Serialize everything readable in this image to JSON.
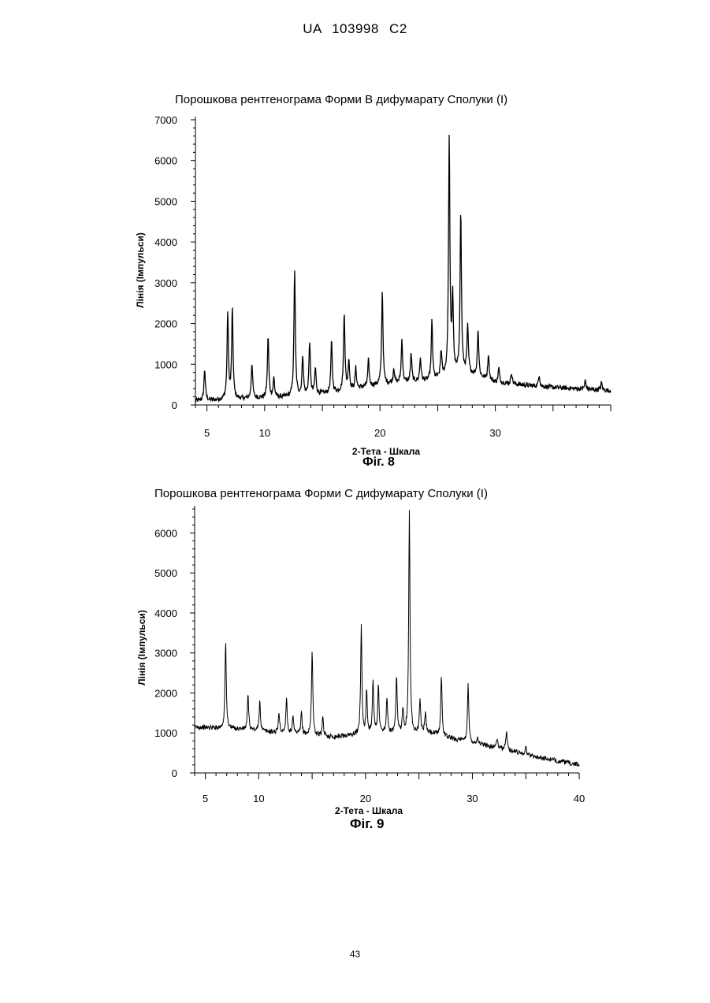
{
  "header": "UA 103998 C2",
  "page_number": "43",
  "chart_data": [
    {
      "type": "line",
      "title": "Порошкова рентгенограма Форми В дифумарату Сполуки (I)",
      "xlabel": "2-Тета - Шкала",
      "ylabel": "Лінія (Імпульси)",
      "caption": "Фіг. 8",
      "xlim": [
        4,
        40
      ],
      "ylim": [
        0,
        7000
      ],
      "xticks": [
        5,
        10,
        20,
        30
      ],
      "yticks": [
        0,
        1000,
        2000,
        3000,
        4000,
        5000,
        6000,
        7000
      ],
      "baseline": [
        [
          4.0,
          100
        ],
        [
          8.0,
          150
        ],
        [
          12.0,
          200
        ],
        [
          16.0,
          300
        ],
        [
          20.0,
          500
        ],
        [
          24.5,
          600
        ],
        [
          27.5,
          800
        ],
        [
          30.0,
          550
        ],
        [
          34.0,
          450
        ],
        [
          40.0,
          350
        ]
      ],
      "peaks": [
        {
          "x": 4.8,
          "y": 880
        },
        {
          "x": 6.8,
          "y": 2260
        },
        {
          "x": 7.2,
          "y": 2320
        },
        {
          "x": 8.9,
          "y": 1030
        },
        {
          "x": 10.3,
          "y": 1700
        },
        {
          "x": 10.8,
          "y": 650
        },
        {
          "x": 12.6,
          "y": 3330
        },
        {
          "x": 13.3,
          "y": 1200
        },
        {
          "x": 13.9,
          "y": 1550
        },
        {
          "x": 14.4,
          "y": 900
        },
        {
          "x": 15.8,
          "y": 1560
        },
        {
          "x": 16.9,
          "y": 2280
        },
        {
          "x": 17.3,
          "y": 1100
        },
        {
          "x": 17.9,
          "y": 900
        },
        {
          "x": 19.0,
          "y": 1100
        },
        {
          "x": 20.2,
          "y": 2800
        },
        {
          "x": 21.2,
          "y": 900
        },
        {
          "x": 21.9,
          "y": 1600
        },
        {
          "x": 22.7,
          "y": 1250
        },
        {
          "x": 23.5,
          "y": 1150
        },
        {
          "x": 24.5,
          "y": 2050
        },
        {
          "x": 25.3,
          "y": 1300
        },
        {
          "x": 26.0,
          "y": 6500
        },
        {
          "x": 26.3,
          "y": 2600
        },
        {
          "x": 27.0,
          "y": 4750
        },
        {
          "x": 27.6,
          "y": 1900
        },
        {
          "x": 28.5,
          "y": 1850
        },
        {
          "x": 29.4,
          "y": 1250
        },
        {
          "x": 30.3,
          "y": 900
        },
        {
          "x": 31.4,
          "y": 800
        },
        {
          "x": 33.8,
          "y": 750
        },
        {
          "x": 37.8,
          "y": 600
        },
        {
          "x": 39.2,
          "y": 550
        }
      ]
    },
    {
      "type": "line",
      "title": "Порошкова рентгенограма Форми С дифумарату Сполуки (I)",
      "xlabel": "2-Тета - Шкала",
      "ylabel": "Лінія (Імпульси)",
      "caption": "Фіг. 9",
      "xlim": [
        4,
        40
      ],
      "ylim": [
        0,
        6600
      ],
      "xticks": [
        5,
        10,
        20,
        30,
        40
      ],
      "yticks": [
        0,
        1000,
        2000,
        3000,
        4000,
        5000,
        6000
      ],
      "baseline": [
        [
          4.0,
          1150
        ],
        [
          8.0,
          1100
        ],
        [
          12.0,
          1000
        ],
        [
          17.0,
          900
        ],
        [
          19.0,
          950
        ],
        [
          22.0,
          1000
        ],
        [
          26.0,
          1000
        ],
        [
          29.0,
          800
        ],
        [
          33.0,
          600
        ],
        [
          36.0,
          400
        ],
        [
          40.0,
          200
        ]
      ],
      "peaks": [
        {
          "x": 6.9,
          "y": 3270
        },
        {
          "x": 9.0,
          "y": 1950
        },
        {
          "x": 10.1,
          "y": 1800
        },
        {
          "x": 11.9,
          "y": 1500
        },
        {
          "x": 12.6,
          "y": 1900
        },
        {
          "x": 13.2,
          "y": 1400
        },
        {
          "x": 14.0,
          "y": 1500
        },
        {
          "x": 15.0,
          "y": 3100
        },
        {
          "x": 16.0,
          "y": 1350
        },
        {
          "x": 19.6,
          "y": 3700
        },
        {
          "x": 20.1,
          "y": 2000
        },
        {
          "x": 20.7,
          "y": 2350
        },
        {
          "x": 21.2,
          "y": 2200
        },
        {
          "x": 22.0,
          "y": 1850
        },
        {
          "x": 22.9,
          "y": 2400
        },
        {
          "x": 23.5,
          "y": 1600
        },
        {
          "x": 24.1,
          "y": 6550
        },
        {
          "x": 25.1,
          "y": 1850
        },
        {
          "x": 25.6,
          "y": 1500
        },
        {
          "x": 27.1,
          "y": 2450
        },
        {
          "x": 29.6,
          "y": 2250
        },
        {
          "x": 30.5,
          "y": 900
        },
        {
          "x": 32.3,
          "y": 850
        },
        {
          "x": 33.2,
          "y": 1050
        },
        {
          "x": 35.0,
          "y": 650
        }
      ]
    }
  ]
}
